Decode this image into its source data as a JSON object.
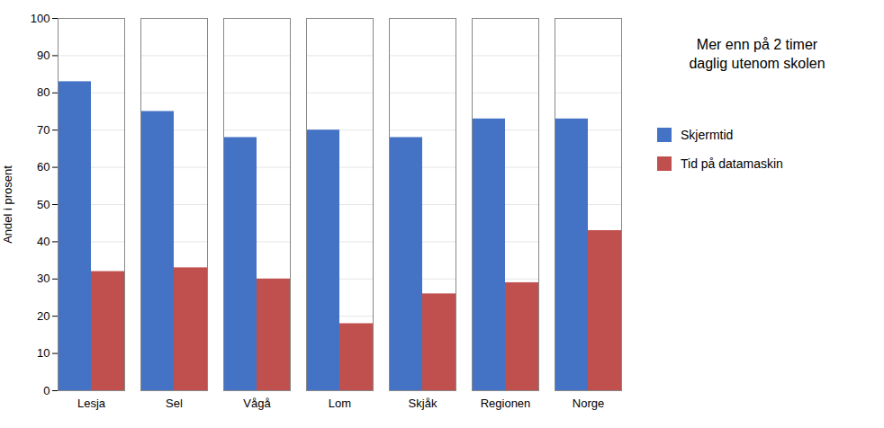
{
  "chart_data": {
    "type": "bar",
    "categories": [
      "Lesja",
      "Sel",
      "Vågå",
      "Lom",
      "Skjåk",
      "Regionen",
      "Norge"
    ],
    "series": [
      {
        "name": "Skjermtid",
        "color": "#4472C4",
        "values": [
          83,
          75,
          68,
          70,
          68,
          73,
          73
        ]
      },
      {
        "name": "Tid på datamaskin",
        "color": "#C0504D",
        "values": [
          32,
          33,
          30,
          18,
          26,
          29,
          43
        ]
      }
    ],
    "ylabel": "Andel i prosent",
    "ylim": [
      0,
      100
    ],
    "yticks": [
      0,
      10,
      20,
      30,
      40,
      50,
      60,
      70,
      80,
      90,
      100
    ],
    "grid": true,
    "legend": "right",
    "annotation": "Mer enn på 2 timer\ndaglig utenom skolen"
  }
}
